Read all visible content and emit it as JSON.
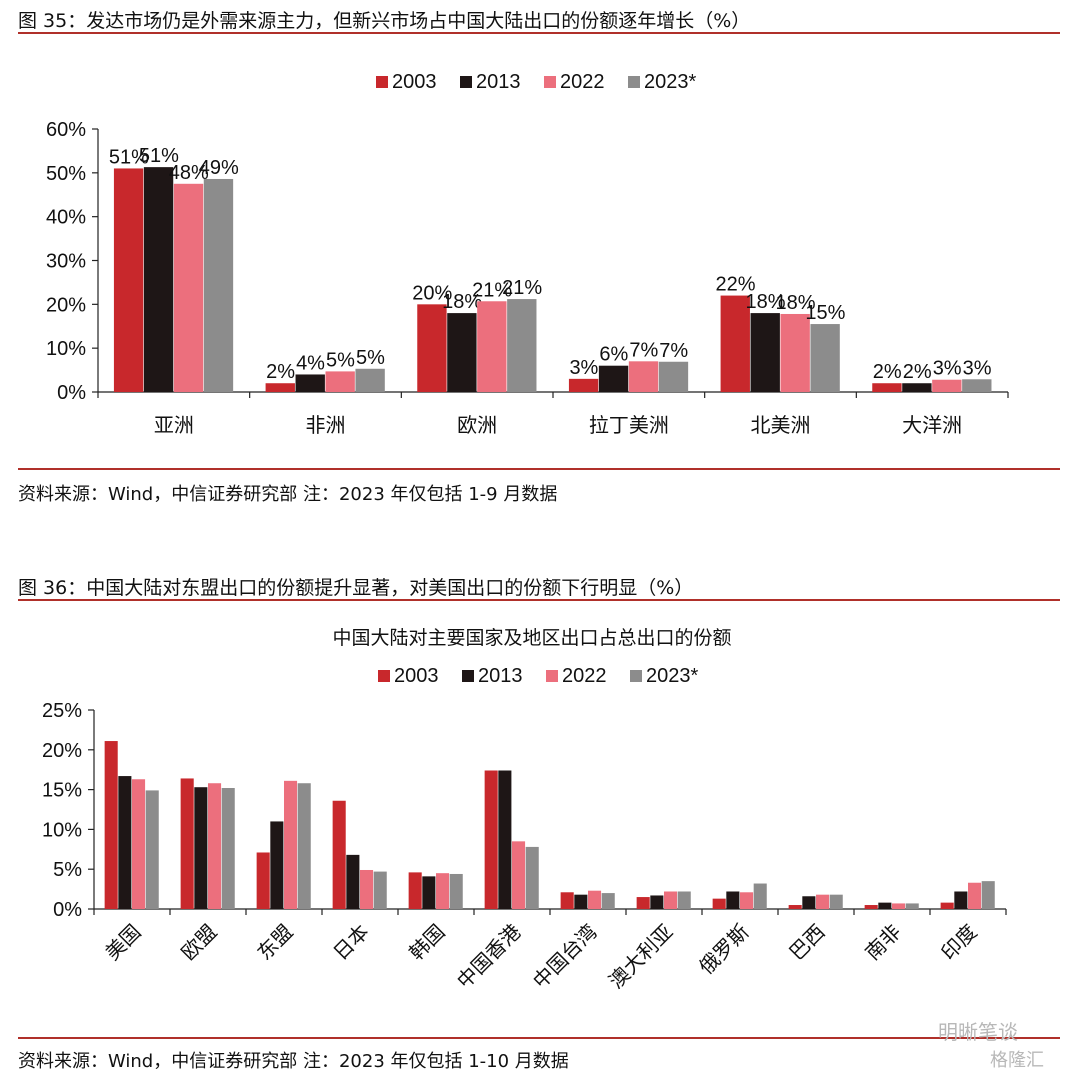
{
  "figures": [
    {
      "title": "图 35：发达市场仍是外需来源主力，但新兴市场占中国大陆出口的份额逐年增长（%）",
      "source": "资料来源：Wind，中信证券研究部  注：2023 年仅包括 1-9 月数据"
    },
    {
      "title": "图 36：中国大陆对东盟出口的份额提升显著，对美国出口的份额下行明显（%）",
      "source": "资料来源：Wind，中信证券研究部  注：2023 年仅包括 1-10 月数据"
    }
  ],
  "watermark": {
    "text": "明晰笔谈",
    "sub": "格隆汇"
  },
  "chart_data": [
    {
      "type": "bar",
      "title": "",
      "categories": [
        "亚洲",
        "非洲",
        "欧洲",
        "拉丁美洲",
        "北美洲",
        "大洋洲"
      ],
      "series": [
        {
          "name": "2003",
          "color": "#c8282c",
          "values": [
            51,
            2,
            20,
            3,
            22,
            2
          ]
        },
        {
          "name": "2013",
          "color": "#1e1616",
          "values": [
            51.3,
            4,
            18,
            6,
            18,
            2
          ]
        },
        {
          "name": "2022",
          "color": "#ec6f7d",
          "values": [
            47.5,
            4.7,
            20.7,
            7,
            17.8,
            2.8
          ]
        },
        {
          "name": "2023*",
          "color": "#8c8c8c",
          "values": [
            48.6,
            5.3,
            21.2,
            6.9,
            15.5,
            2.9
          ]
        }
      ],
      "data_labels": [
        [
          "51%",
          "2%",
          "20%",
          "3%",
          "22%",
          "2%"
        ],
        [
          "51%",
          "4%",
          "18%",
          "6%",
          "18%",
          "2%"
        ],
        [
          "48%",
          "5%",
          "21%",
          "7%",
          "18%",
          "3%"
        ],
        [
          "49%",
          "5%",
          "21%",
          "7%",
          "15%",
          "3%"
        ]
      ],
      "ylim": [
        0,
        60
      ],
      "yticks": [
        0,
        10,
        20,
        30,
        40,
        50,
        60
      ],
      "ytick_labels": [
        "0%",
        "10%",
        "20%",
        "30%",
        "40%",
        "50%",
        "60%"
      ],
      "legend": "top",
      "grid": false
    },
    {
      "type": "bar",
      "title": "中国大陆对主要国家及地区出口占总出口的份额",
      "categories": [
        "美国",
        "欧盟",
        "东盟",
        "日本",
        "韩国",
        "中国香港",
        "中国台湾",
        "澳大利亚",
        "俄罗斯",
        "巴西",
        "南非",
        "印度"
      ],
      "series": [
        {
          "name": "2003",
          "color": "#c8282c",
          "values": [
            21.1,
            16.4,
            7.1,
            13.6,
            4.6,
            17.4,
            2.1,
            1.5,
            1.3,
            0.5,
            0.5,
            0.8
          ]
        },
        {
          "name": "2013",
          "color": "#1e1616",
          "values": [
            16.7,
            15.3,
            11.0,
            6.8,
            4.1,
            17.4,
            1.8,
            1.7,
            2.2,
            1.6,
            0.8,
            2.2
          ]
        },
        {
          "name": "2022",
          "color": "#ec6f7d",
          "values": [
            16.3,
            15.8,
            16.1,
            4.9,
            4.5,
            8.5,
            2.3,
            2.2,
            2.1,
            1.8,
            0.7,
            3.3
          ]
        },
        {
          "name": "2023*",
          "color": "#8c8c8c",
          "values": [
            14.9,
            15.2,
            15.8,
            4.7,
            4.4,
            7.8,
            2.0,
            2.2,
            3.2,
            1.8,
            0.7,
            3.5
          ]
        }
      ],
      "ylim": [
        0,
        25
      ],
      "yticks": [
        0,
        5,
        10,
        15,
        20,
        25
      ],
      "ytick_labels": [
        "0%",
        "5%",
        "10%",
        "15%",
        "20%",
        "25%"
      ],
      "legend": "top",
      "grid": false
    }
  ]
}
